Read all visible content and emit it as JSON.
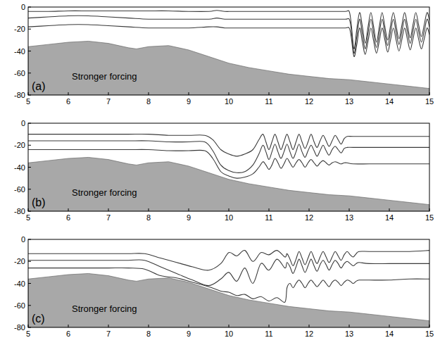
{
  "chart_data": [
    {
      "type": "line",
      "panel_label": "(a)",
      "annotation": "Stronger forcing",
      "xlim": [
        5,
        15
      ],
      "ylim": [
        -80,
        0
      ],
      "xticks": [
        5,
        6,
        7,
        8,
        9,
        10,
        11,
        12,
        13,
        14,
        15
      ],
      "yticks": [
        0,
        -20,
        -40,
        -60,
        -80
      ],
      "x": [
        5,
        5.5,
        6,
        6.5,
        7,
        7.5,
        8,
        8.5,
        9,
        9.5,
        9.7,
        9.9,
        10.1,
        10.5,
        11,
        11.5,
        12,
        12.5,
        12.9,
        13,
        13.05,
        13.12,
        13.19,
        13.26,
        13.33,
        13.4,
        13.47,
        13.54,
        13.61,
        13.68,
        13.75,
        13.82,
        13.89,
        13.96,
        14.03,
        14.1,
        14.17,
        14.24,
        14.31,
        14.38,
        14.45,
        14.52,
        14.59,
        14.66,
        14.73,
        14.8,
        14.87,
        14.94,
        15
      ],
      "series": [
        {
          "type": "area",
          "color": "#a8a8a8",
          "x": [
            5,
            5.5,
            6,
            6.5,
            7,
            7.5,
            7.7,
            8,
            8.5,
            9,
            9.5,
            10,
            10.5,
            11,
            11.5,
            12,
            12.5,
            13,
            13.5,
            14,
            14.5,
            15
          ],
          "values": [
            -36,
            -34,
            -32,
            -31,
            -33,
            -37,
            -38,
            -36,
            -35,
            -39,
            -45,
            -51,
            -55,
            -58,
            -61,
            -63,
            -65,
            -66,
            -68,
            -70,
            -72,
            -74
          ]
        },
        {
          "type": "line",
          "color": "#3a3a3a",
          "values": [
            -4,
            -4,
            -3.5,
            -3.5,
            -3.5,
            -3.5,
            -3.5,
            -3.5,
            -4,
            -4,
            -3,
            -4,
            -4,
            -4,
            -4,
            -4,
            -4,
            -4,
            -4,
            -4,
            -15,
            -38,
            -20,
            -5,
            -18,
            -33,
            -18,
            -5,
            -18,
            -32,
            -18,
            -5,
            -18,
            -30,
            -17,
            -5,
            -17,
            -29,
            -17,
            -5,
            -16,
            -28,
            -16,
            -5,
            -16,
            -27,
            -16,
            -5,
            -12
          ]
        },
        {
          "type": "line",
          "color": "#3a3a3a",
          "values": [
            -10,
            -9,
            -8,
            -8,
            -9,
            -10,
            -11,
            -11,
            -11,
            -11,
            -10,
            -11,
            -11,
            -11,
            -11,
            -11,
            -11,
            -11,
            -11,
            -11,
            -20,
            -42,
            -27,
            -11,
            -25,
            -38,
            -24,
            -11,
            -24,
            -37,
            -24,
            -11,
            -24,
            -35,
            -23,
            -11,
            -23,
            -34,
            -23,
            -11,
            -22,
            -33,
            -22,
            -11,
            -22,
            -32,
            -22,
            -11,
            -18
          ]
        },
        {
          "type": "line",
          "color": "#3a3a3a",
          "values": [
            -18,
            -17,
            -16,
            -16,
            -17,
            -18,
            -19,
            -19,
            -19,
            -18,
            -18,
            -19,
            -19,
            -19,
            -19,
            -19,
            -19,
            -19,
            -19,
            -19,
            -27,
            -45,
            -34,
            -19,
            -32,
            -43,
            -31,
            -19,
            -31,
            -42,
            -31,
            -19,
            -30,
            -41,
            -30,
            -19,
            -30,
            -40,
            -30,
            -19,
            -29,
            -39,
            -29,
            -19,
            -29,
            -38,
            -29,
            -19,
            -25
          ]
        }
      ]
    },
    {
      "type": "line",
      "panel_label": "(b)",
      "annotation": "Stronger forcing",
      "xlim": [
        5,
        15
      ],
      "ylim": [
        -80,
        0
      ],
      "xticks": [
        5,
        6,
        7,
        8,
        9,
        10,
        11,
        12,
        13,
        14,
        15
      ],
      "yticks": [
        0,
        -20,
        -40,
        -60,
        -80
      ],
      "x": [
        5,
        5.5,
        6,
        6.5,
        7,
        7.5,
        8,
        8.5,
        9,
        9.4,
        9.6,
        9.8,
        10,
        10.2,
        10.4,
        10.6,
        10.75,
        10.85,
        10.925,
        11,
        11.075,
        11.15,
        11.225,
        11.3,
        11.375,
        11.45,
        11.525,
        11.6,
        11.675,
        11.75,
        11.825,
        11.9,
        11.975,
        12.05,
        12.125,
        12.2,
        12.275,
        12.35,
        12.425,
        12.5,
        12.575,
        12.65,
        12.725,
        12.8,
        12.875,
        12.95,
        13.1,
        13.5,
        14,
        14.5,
        15
      ],
      "series": [
        {
          "type": "area",
          "color": "#a8a8a8",
          "x": [
            5,
            5.5,
            6,
            6.5,
            7,
            7.5,
            7.7,
            8,
            8.5,
            9,
            9.5,
            10,
            10.5,
            11,
            11.5,
            12,
            12.5,
            13,
            13.5,
            14,
            14.5,
            15
          ],
          "values": [
            -36,
            -34,
            -32,
            -31,
            -33,
            -37,
            -38,
            -36,
            -35,
            -39,
            -45,
            -51,
            -55,
            -58,
            -61,
            -63,
            -65,
            -66,
            -68,
            -70,
            -72,
            -74
          ]
        },
        {
          "type": "line",
          "color": "#3a3a3a",
          "values": [
            -10,
            -10,
            -10,
            -10,
            -10,
            -10,
            -10,
            -11,
            -11,
            -11,
            -15,
            -24,
            -28,
            -30,
            -28,
            -24,
            -15,
            -10,
            -17,
            -24,
            -17,
            -10,
            -17,
            -24,
            -17,
            -10,
            -17,
            -24,
            -17,
            -10,
            -17,
            -23,
            -17,
            -10,
            -17,
            -22,
            -16,
            -11,
            -16,
            -21,
            -16,
            -11,
            -15,
            -19,
            -14,
            -12,
            -12,
            -12,
            -12,
            -12,
            -12
          ]
        },
        {
          "type": "line",
          "color": "#3a3a3a",
          "values": [
            -16,
            -16,
            -16,
            -16,
            -16,
            -16,
            -16,
            -17,
            -17,
            -17,
            -25,
            -38,
            -43,
            -45,
            -44,
            -38,
            -28,
            -20,
            -26,
            -33,
            -26,
            -19,
            -26,
            -32,
            -26,
            -19,
            -26,
            -32,
            -26,
            -19,
            -26,
            -31,
            -25,
            -20,
            -25,
            -30,
            -25,
            -20,
            -25,
            -29,
            -24,
            -21,
            -24,
            -27,
            -23,
            -22,
            -22,
            -22,
            -22,
            -22,
            -22
          ]
        },
        {
          "type": "line",
          "color": "#3a3a3a",
          "values": [
            -24,
            -24,
            -24,
            -24,
            -24,
            -24,
            -24,
            -25,
            -25,
            -25,
            -32,
            -44,
            -48,
            -50,
            -49,
            -46,
            -40,
            -35,
            -38,
            -42,
            -38,
            -32,
            -36,
            -41,
            -37,
            -32,
            -36,
            -40,
            -36,
            -33,
            -36,
            -40,
            -36,
            -33,
            -36,
            -39,
            -36,
            -34,
            -36,
            -38,
            -36,
            -35,
            -36,
            -37,
            -36,
            -36,
            -37,
            -37,
            -37,
            -37,
            -37
          ]
        }
      ]
    },
    {
      "type": "line",
      "panel_label": "(c)",
      "annotation": "Stronger forcing",
      "xlim": [
        5,
        15
      ],
      "ylim": [
        -80,
        0
      ],
      "xticks": [
        5,
        6,
        7,
        8,
        9,
        10,
        11,
        12,
        13,
        14,
        15
      ],
      "yticks": [
        0,
        -20,
        -40,
        -60,
        -80
      ],
      "x": [
        5,
        5.5,
        6,
        6.5,
        7,
        7.5,
        7.9,
        8.3,
        8.7,
        9.1,
        9.5,
        9.8,
        10,
        10.2,
        10.4,
        10.6,
        10.8,
        11,
        11.2,
        11.4,
        11.45,
        11.525,
        11.6,
        11.675,
        11.75,
        11.825,
        11.9,
        11.975,
        12.05,
        12.125,
        12.2,
        12.275,
        12.35,
        12.425,
        12.5,
        12.575,
        12.65,
        12.725,
        12.8,
        12.875,
        12.95,
        13.025,
        13.1,
        13.175,
        13.25,
        13.5,
        14,
        14.5,
        15
      ],
      "series": [
        {
          "type": "area",
          "color": "#a8a8a8",
          "x": [
            5,
            5.5,
            6,
            6.5,
            7,
            7.5,
            7.7,
            8,
            8.5,
            9,
            9.5,
            10,
            10.5,
            11,
            11.5,
            12,
            12.5,
            13,
            13.5,
            14,
            14.5,
            15
          ],
          "values": [
            -36,
            -34,
            -32,
            -31,
            -33,
            -37,
            -38,
            -36,
            -35,
            -39,
            -45,
            -51,
            -55,
            -58,
            -61,
            -63,
            -65,
            -66,
            -68,
            -70,
            -72,
            -74
          ]
        },
        {
          "type": "line",
          "color": "#3a3a3a",
          "values": [
            -13,
            -13,
            -13,
            -13,
            -13,
            -13,
            -13,
            -17,
            -21,
            -25,
            -28,
            -22,
            -12,
            -15,
            -10,
            -20,
            -12,
            -14,
            -10,
            -16,
            -13,
            -18,
            -24,
            -18,
            -11,
            -17,
            -23,
            -17,
            -11,
            -17,
            -22,
            -16,
            -11,
            -16,
            -21,
            -16,
            -11,
            -15,
            -19,
            -14,
            -11,
            -14,
            -16,
            -13,
            -11,
            -11,
            -11,
            -11,
            -10
          ]
        },
        {
          "type": "line",
          "color": "#3a3a3a",
          "values": [
            -19,
            -19,
            -19,
            -19,
            -19,
            -19,
            -19,
            -25,
            -31,
            -37,
            -42,
            -36,
            -30,
            -38,
            -26,
            -40,
            -22,
            -28,
            -18,
            -26,
            -21,
            -25,
            -31,
            -25,
            -18,
            -24,
            -30,
            -24,
            -18,
            -24,
            -29,
            -23,
            -19,
            -23,
            -28,
            -23,
            -19,
            -22,
            -26,
            -22,
            -20,
            -22,
            -24,
            -22,
            -21,
            -22,
            -22,
            -22,
            -22
          ]
        },
        {
          "type": "line",
          "color": "#3a3a3a",
          "values": [
            -26,
            -26,
            -26,
            -26,
            -26,
            -26,
            -27,
            -33,
            -35,
            -39,
            -43,
            -47,
            -48,
            -51,
            -50,
            -54,
            -52,
            -56,
            -53,
            -57,
            -44,
            -40,
            -44,
            -40,
            -37,
            -40,
            -44,
            -40,
            -37,
            -40,
            -43,
            -40,
            -37,
            -40,
            -43,
            -39,
            -37,
            -39,
            -42,
            -39,
            -37,
            -38,
            -40,
            -38,
            -37,
            -37,
            -37,
            -36,
            -36
          ]
        }
      ]
    }
  ]
}
